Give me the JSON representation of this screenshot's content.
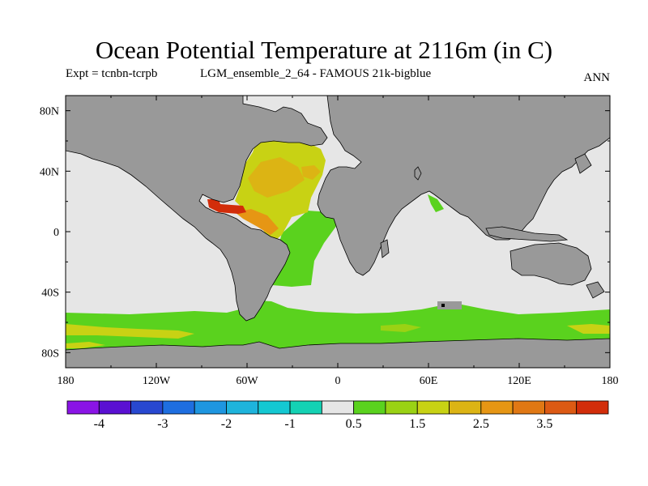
{
  "title": "Ocean Potential Temperature at 2116m (in C)",
  "experiment": "Expt = tcnbn-tcrpb",
  "run": "LGM_ensemble_2_64 - FAMOUS 21k-bigblue",
  "season": "ANN",
  "map": {
    "land_color": "#999999",
    "ocean_default_color": "#e6e6e6",
    "lat_ticks": [
      "80N",
      "40N",
      "0",
      "40S",
      "80S"
    ],
    "lon_ticks": [
      "180",
      "120W",
      "60W",
      "0",
      "60E",
      "120E",
      "180"
    ]
  },
  "colorbar": {
    "colors": [
      "#8a14e6",
      "#5a10d2",
      "#2848d0",
      "#1e6ee0",
      "#1e96e0",
      "#1eb4dc",
      "#14c8d2",
      "#14d2b4",
      "#e6e6e6",
      "#5ad21e",
      "#9ad214",
      "#c8d214",
      "#dcb414",
      "#e69614",
      "#e07814",
      "#dc5a14",
      "#d22d0a"
    ],
    "labels": [
      "-4",
      "-3",
      "-2",
      "-1",
      "0.5",
      "1.5",
      "2.5",
      "3.5"
    ]
  }
}
